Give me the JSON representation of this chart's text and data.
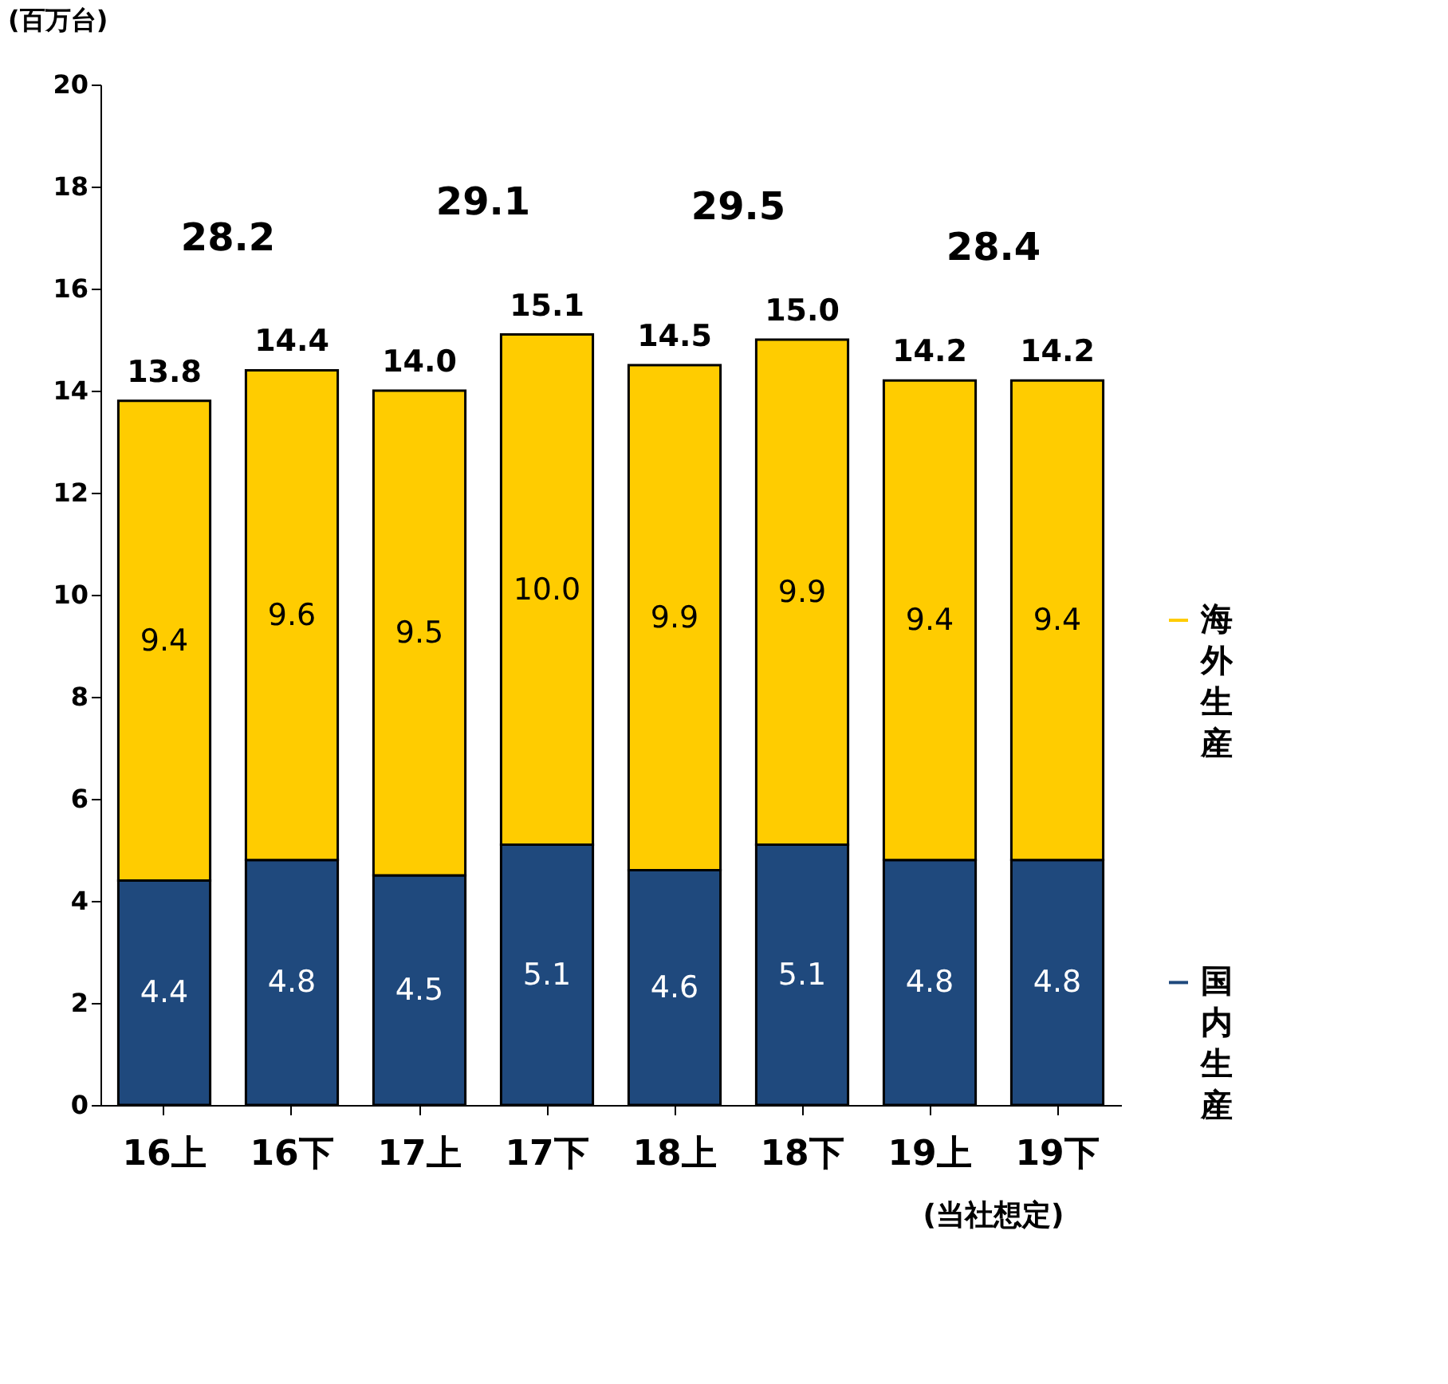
{
  "chart_data": {
    "type": "bar",
    "stacked": true,
    "ylabel": "(百万台)",
    "categories": [
      "16上",
      "16下",
      "17上",
      "17下",
      "18上",
      "18下",
      "19上",
      "19下"
    ],
    "series": [
      {
        "name": "国内生産",
        "color": "#1f497d",
        "values": [
          4.4,
          4.8,
          4.5,
          5.1,
          4.6,
          5.1,
          4.8,
          4.8
        ],
        "value_labels": [
          "4.4",
          "4.8",
          "4.5",
          "5.1",
          "4.6",
          "5.1",
          "4.8",
          "4.8"
        ]
      },
      {
        "name": "海外生産",
        "color": "#ffcc00",
        "values": [
          9.4,
          9.6,
          9.5,
          10.0,
          9.9,
          9.9,
          9.4,
          9.4
        ],
        "value_labels": [
          "9.4",
          "9.6",
          "9.5",
          "10.0",
          "9.9",
          "9.9",
          "9.4",
          "9.4"
        ]
      }
    ],
    "totals": [
      "13.8",
      "14.4",
      "14.0",
      "15.1",
      "14.5",
      "15.0",
      "14.2",
      "14.2"
    ],
    "annotations": [
      "28.2",
      "29.1",
      "29.5",
      "28.4",
      "(当社想定)"
    ],
    "ylim": [
      0,
      20
    ],
    "yticks": [
      0,
      2,
      4,
      6,
      8,
      10,
      12,
      14,
      16,
      18,
      20
    ],
    "grid": false,
    "legend": "right"
  }
}
